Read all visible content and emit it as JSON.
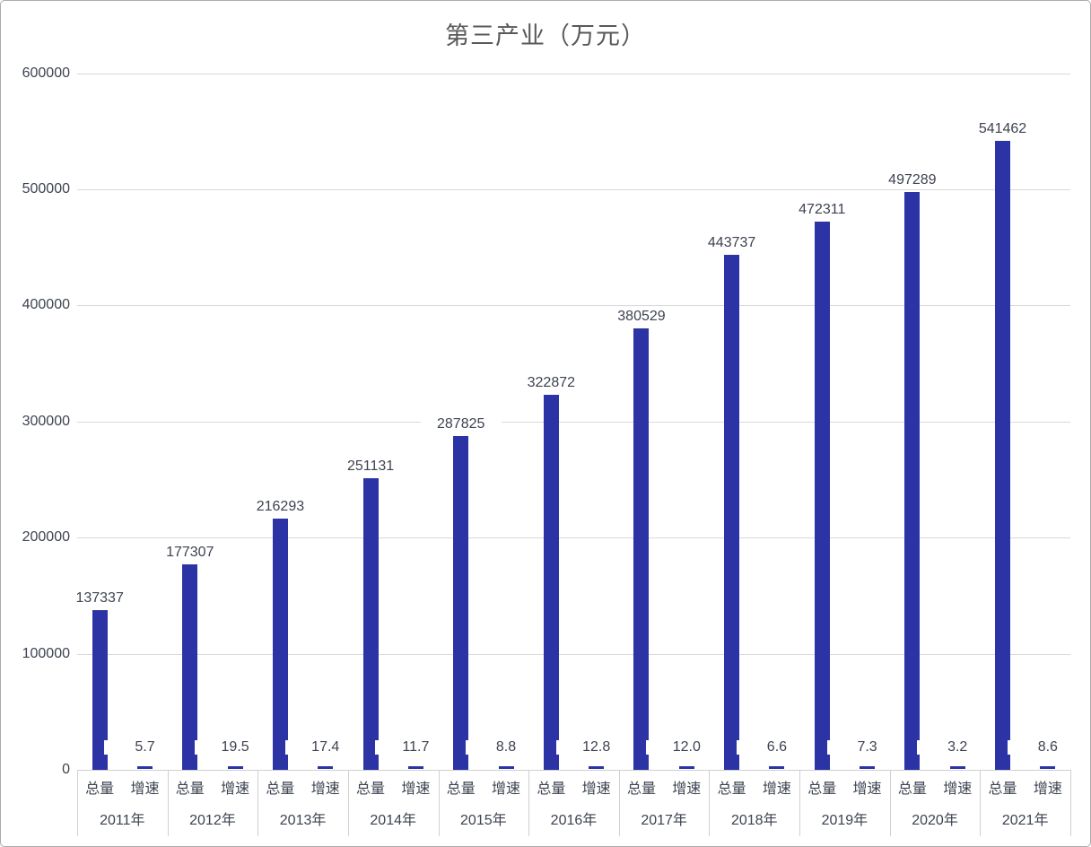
{
  "title": "第三产业（万元）",
  "chart_data": {
    "type": "bar",
    "title": "第三产业（万元）",
    "categories": [
      "2011年",
      "2012年",
      "2013年",
      "2014年",
      "2015年",
      "2016年",
      "2017年",
      "2018年",
      "2019年",
      "2020年",
      "2021年"
    ],
    "sub_category_labels": [
      "总量",
      "增速"
    ],
    "series": [
      {
        "name": "总量",
        "values": [
          137337,
          177307,
          216293,
          251131,
          287825,
          322872,
          380529,
          443737,
          472311,
          497289,
          541462
        ]
      },
      {
        "name": "增速",
        "values": [
          5.7,
          19.5,
          17.4,
          11.7,
          8.8,
          12.8,
          12.0,
          6.6,
          7.3,
          3.2,
          8.6
        ]
      }
    ],
    "ylim": [
      0,
      600000
    ],
    "yticks": [
      0,
      100000,
      200000,
      300000,
      400000,
      500000,
      600000
    ],
    "grid": true,
    "legend_position": "none",
    "data_labels": true
  },
  "colors": {
    "bar": "#2C33A4",
    "gridline": "#D9D9D9",
    "axis_line": "#D0D0D0",
    "text": "#3D4350",
    "title": "#595959",
    "frame_border": "#ABABAB",
    "background": "#FFFFFF"
  }
}
